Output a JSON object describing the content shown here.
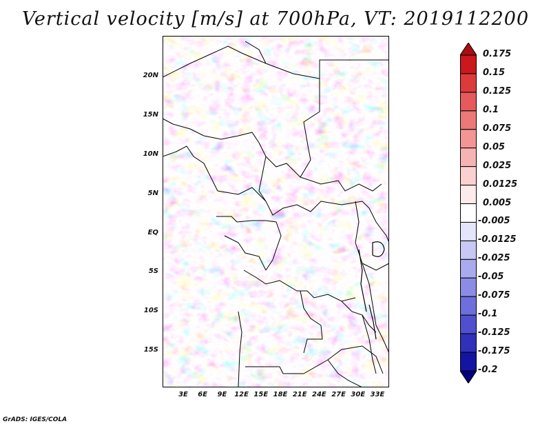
{
  "title": "Vertical velocity [m/s] at 700hPa, VT: 2019112200",
  "footer": "GrADS: IGES/COLA",
  "map": {
    "y_ticks": [
      "20N",
      "15N",
      "10N",
      "5N",
      "EQ",
      "5S",
      "10S",
      "15S"
    ],
    "x_ticks": [
      "3E",
      "6E",
      "9E",
      "12E",
      "15E",
      "18E",
      "21E",
      "24E",
      "27E",
      "30E",
      "33E"
    ]
  },
  "colorbar": {
    "labels": [
      "0.175",
      "0.15",
      "0.125",
      "0.1",
      "0.075",
      "0.05",
      "0.025",
      "0.0125",
      "0.005",
      "-0.005",
      "-0.0125",
      "-0.025",
      "-0.05",
      "-0.075",
      "-0.1",
      "-0.125",
      "-0.175",
      "-0.2"
    ],
    "colors": [
      "#a50f15",
      "#cb181d",
      "#dd3b3b",
      "#e55a5a",
      "#ec7878",
      "#f29595",
      "#f6b3b3",
      "#fad0d0",
      "#fdeaea",
      "#ffffff",
      "#e4e4fa",
      "#c8c8f4",
      "#aaaaee",
      "#8c8ce6",
      "#6e6edc",
      "#5050cf",
      "#3030bb",
      "#1414a3",
      "#00007a"
    ]
  }
}
